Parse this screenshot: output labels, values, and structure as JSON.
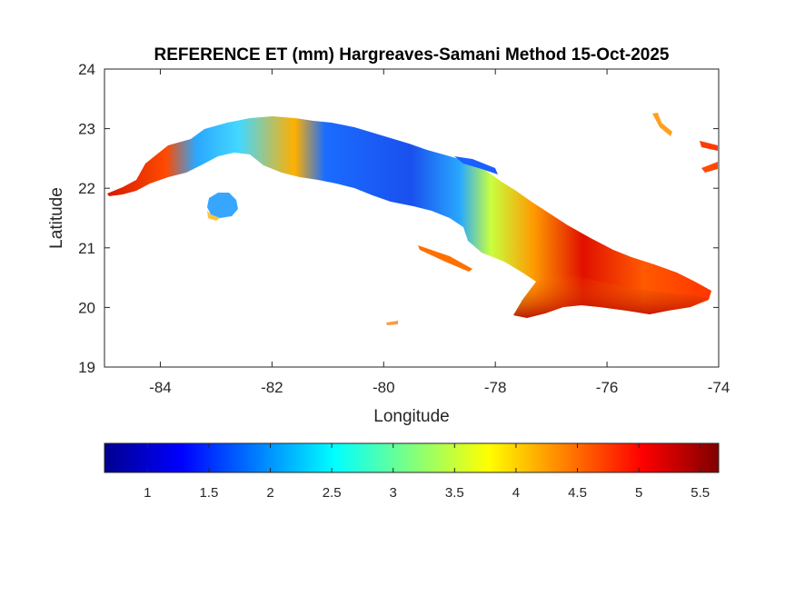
{
  "chart_data": {
    "type": "heatmap",
    "title": "REFERENCE ET (mm) Hargreaves-Samani Method  15-Oct-2025",
    "xlabel": "Longitude",
    "ylabel": "Latitude",
    "xlim": [
      -85,
      -74
    ],
    "ylim": [
      19,
      24
    ],
    "xticks": [
      -84,
      -82,
      -80,
      -78,
      -76,
      -74
    ],
    "yticks": [
      19,
      20,
      21,
      22,
      23,
      24
    ],
    "grid": false,
    "colormap": "jet",
    "colorbar": {
      "orientation": "horizontal",
      "placement": "below",
      "range": [
        0.65,
        5.65
      ],
      "ticks": [
        1,
        1.5,
        2,
        2.5,
        3,
        3.5,
        4,
        4.5,
        5,
        5.5
      ]
    },
    "regions": [
      {
        "lon_range": [
          -84.9,
          -83.2
        ],
        "approx_value": 5.0
      },
      {
        "lon_range": [
          -83.2,
          -81.5
        ],
        "approx_value": 2.6
      },
      {
        "lon_range": [
          -81.5,
          -80.8
        ],
        "approx_value": 4.2
      },
      {
        "lon_range": [
          -80.8,
          -78.5
        ],
        "approx_value": 1.8
      },
      {
        "lon_range": [
          -78.5,
          -77.5
        ],
        "approx_value": 3.4
      },
      {
        "lon_range": [
          -77.5,
          -76.0
        ],
        "approx_value": 5.2
      },
      {
        "lon_range": [
          -76.0,
          -74.2
        ],
        "approx_value": 4.7
      }
    ],
    "isla_de_la_juventud_value": 2.0
  }
}
